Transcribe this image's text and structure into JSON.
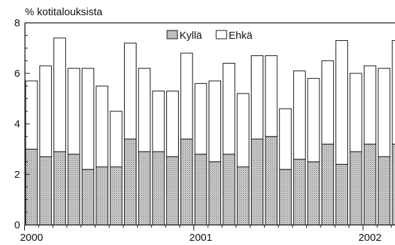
{
  "chart_data": {
    "type": "bar",
    "stacked": true,
    "ylabel": "% kotitalouksista",
    "xlabel": "",
    "ylim": [
      0,
      8
    ],
    "yticks": [
      0,
      2,
      4,
      6,
      8
    ],
    "xtick_labels": [
      {
        "label": "2000",
        "index": 0
      },
      {
        "label": "2001",
        "index": 12
      },
      {
        "label": "2002",
        "index": 24
      }
    ],
    "legend": {
      "placement": "top-center"
    },
    "series": [
      {
        "name": "Kyllä",
        "color": "#b8b8b8",
        "values": [
          3.0,
          2.7,
          2.9,
          2.8,
          2.2,
          2.3,
          2.3,
          3.4,
          2.9,
          2.9,
          2.7,
          3.4,
          2.8,
          2.5,
          2.8,
          2.3,
          3.4,
          3.5,
          2.2,
          2.6,
          2.5,
          3.2,
          2.4,
          2.9,
          3.2,
          2.7,
          3.2
        ]
      },
      {
        "name": "Ehkä",
        "color": "#ffffff",
        "values": [
          2.7,
          3.6,
          4.5,
          3.4,
          4.0,
          3.2,
          2.2,
          3.8,
          3.3,
          2.4,
          2.6,
          3.4,
          2.8,
          3.2,
          3.6,
          2.9,
          3.3,
          3.2,
          2.4,
          3.5,
          3.3,
          3.3,
          4.9,
          3.1,
          3.1,
          3.5,
          4.1
        ]
      }
    ]
  }
}
